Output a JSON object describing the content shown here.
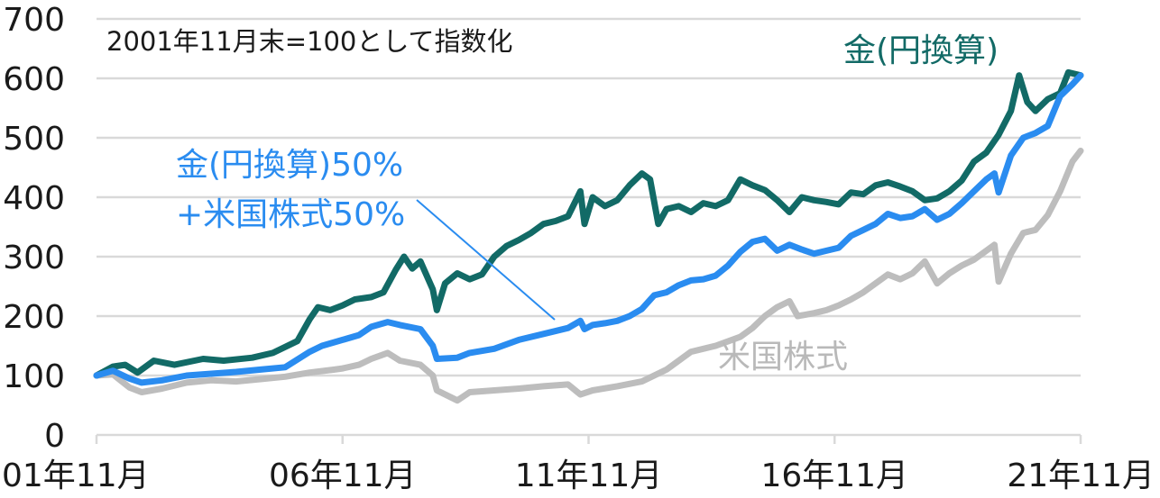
{
  "chart_data": {
    "type": "line",
    "note": "2001年11月末=100として指数化",
    "ylim": [
      0,
      700
    ],
    "yticks": [
      0,
      100,
      200,
      300,
      400,
      500,
      600,
      700
    ],
    "xticks": [
      "01年11月",
      "06年11月",
      "11年11月",
      "16年11月",
      "21年11月"
    ],
    "xlim": [
      "2001-11",
      "2021-11"
    ],
    "colors": {
      "gold": "#126a66",
      "mix": "#2a8cf0",
      "us": "#bdbdbd",
      "grid": "#d9d9d9"
    },
    "labels": {
      "gold": "金(円換算)",
      "mix_line1": "金(円換算)50%",
      "mix_line2": "+米国株式50%",
      "us": "米国株式"
    },
    "series": [
      {
        "key": "gold",
        "name": "金(円換算)",
        "points": [
          [
            "2001-11",
            100
          ],
          [
            "2002-03",
            115
          ],
          [
            "2002-06",
            118
          ],
          [
            "2002-09",
            105
          ],
          [
            "2003-01",
            125
          ],
          [
            "2003-06",
            118
          ],
          [
            "2004-01",
            128
          ],
          [
            "2004-06",
            125
          ],
          [
            "2005-01",
            130
          ],
          [
            "2005-06",
            138
          ],
          [
            "2005-12",
            158
          ],
          [
            "2006-03",
            195
          ],
          [
            "2006-05",
            215
          ],
          [
            "2006-08",
            210
          ],
          [
            "2006-11",
            218
          ],
          [
            "2007-02",
            228
          ],
          [
            "2007-06",
            232
          ],
          [
            "2007-09",
            240
          ],
          [
            "2007-12",
            278
          ],
          [
            "2008-02",
            300
          ],
          [
            "2008-04",
            280
          ],
          [
            "2008-06",
            292
          ],
          [
            "2008-09",
            245
          ],
          [
            "2008-10",
            210
          ],
          [
            "2008-12",
            255
          ],
          [
            "2009-03",
            272
          ],
          [
            "2009-06",
            262
          ],
          [
            "2009-09",
            270
          ],
          [
            "2009-12",
            300
          ],
          [
            "2010-03",
            318
          ],
          [
            "2010-06",
            328
          ],
          [
            "2010-09",
            340
          ],
          [
            "2010-12",
            355
          ],
          [
            "2011-03",
            360
          ],
          [
            "2011-06",
            368
          ],
          [
            "2011-09",
            410
          ],
          [
            "2011-10",
            355
          ],
          [
            "2011-12",
            400
          ],
          [
            "2012-03",
            385
          ],
          [
            "2012-06",
            395
          ],
          [
            "2012-09",
            420
          ],
          [
            "2012-12",
            440
          ],
          [
            "2013-02",
            430
          ],
          [
            "2013-04",
            355
          ],
          [
            "2013-06",
            380
          ],
          [
            "2013-09",
            385
          ],
          [
            "2013-12",
            375
          ],
          [
            "2014-03",
            390
          ],
          [
            "2014-06",
            385
          ],
          [
            "2014-09",
            395
          ],
          [
            "2014-12",
            430
          ],
          [
            "2015-03",
            420
          ],
          [
            "2015-06",
            412
          ],
          [
            "2015-09",
            395
          ],
          [
            "2015-12",
            375
          ],
          [
            "2016-03",
            400
          ],
          [
            "2016-06",
            395
          ],
          [
            "2016-09",
            392
          ],
          [
            "2016-12",
            388
          ],
          [
            "2017-03",
            408
          ],
          [
            "2017-06",
            405
          ],
          [
            "2017-09",
            420
          ],
          [
            "2017-12",
            425
          ],
          [
            "2018-03",
            418
          ],
          [
            "2018-06",
            410
          ],
          [
            "2018-09",
            395
          ],
          [
            "2018-12",
            398
          ],
          [
            "2019-03",
            410
          ],
          [
            "2019-06",
            428
          ],
          [
            "2019-09",
            460
          ],
          [
            "2019-12",
            475
          ],
          [
            "2020-03",
            505
          ],
          [
            "2020-06",
            545
          ],
          [
            "2020-08",
            605
          ],
          [
            "2020-10",
            560
          ],
          [
            "2020-12",
            545
          ],
          [
            "2021-03",
            565
          ],
          [
            "2021-06",
            575
          ],
          [
            "2021-08",
            610
          ],
          [
            "2021-11",
            605
          ]
        ]
      },
      {
        "key": "mix",
        "name": "金(円換算)50%+米国株式50%",
        "points": [
          [
            "2001-11",
            100
          ],
          [
            "2002-03",
            108
          ],
          [
            "2002-07",
            95
          ],
          [
            "2002-10",
            88
          ],
          [
            "2003-03",
            92
          ],
          [
            "2003-09",
            100
          ],
          [
            "2004-03",
            103
          ],
          [
            "2004-09",
            106
          ],
          [
            "2005-03",
            110
          ],
          [
            "2005-09",
            114
          ],
          [
            "2006-03",
            140
          ],
          [
            "2006-06",
            150
          ],
          [
            "2006-11",
            160
          ],
          [
            "2007-03",
            168
          ],
          [
            "2007-06",
            182
          ],
          [
            "2007-10",
            190
          ],
          [
            "2008-01",
            185
          ],
          [
            "2008-06",
            178
          ],
          [
            "2008-09",
            150
          ],
          [
            "2008-10",
            128
          ],
          [
            "2009-03",
            130
          ],
          [
            "2009-06",
            138
          ],
          [
            "2009-12",
            145
          ],
          [
            "2010-06",
            160
          ],
          [
            "2010-12",
            170
          ],
          [
            "2011-06",
            180
          ],
          [
            "2011-09",
            192
          ],
          [
            "2011-10",
            178
          ],
          [
            "2011-12",
            185
          ],
          [
            "2012-03",
            188
          ],
          [
            "2012-06",
            192
          ],
          [
            "2012-09",
            200
          ],
          [
            "2012-12",
            212
          ],
          [
            "2013-03",
            235
          ],
          [
            "2013-06",
            240
          ],
          [
            "2013-09",
            252
          ],
          [
            "2013-12",
            260
          ],
          [
            "2014-03",
            262
          ],
          [
            "2014-06",
            268
          ],
          [
            "2014-09",
            285
          ],
          [
            "2014-12",
            308
          ],
          [
            "2015-03",
            325
          ],
          [
            "2015-06",
            330
          ],
          [
            "2015-09",
            310
          ],
          [
            "2015-12",
            320
          ],
          [
            "2016-03",
            312
          ],
          [
            "2016-06",
            305
          ],
          [
            "2016-09",
            310
          ],
          [
            "2016-12",
            315
          ],
          [
            "2017-03",
            335
          ],
          [
            "2017-06",
            345
          ],
          [
            "2017-09",
            355
          ],
          [
            "2017-12",
            372
          ],
          [
            "2018-03",
            365
          ],
          [
            "2018-06",
            368
          ],
          [
            "2018-09",
            380
          ],
          [
            "2018-12",
            362
          ],
          [
            "2019-03",
            372
          ],
          [
            "2019-06",
            390
          ],
          [
            "2019-09",
            410
          ],
          [
            "2019-12",
            430
          ],
          [
            "2020-02",
            440
          ],
          [
            "2020-03",
            408
          ],
          [
            "2020-06",
            470
          ],
          [
            "2020-09",
            500
          ],
          [
            "2020-12",
            508
          ],
          [
            "2021-03",
            520
          ],
          [
            "2021-06",
            570
          ],
          [
            "2021-09",
            590
          ],
          [
            "2021-11",
            605
          ]
        ]
      },
      {
        "key": "us",
        "name": "米国株式",
        "points": [
          [
            "2001-11",
            100
          ],
          [
            "2002-03",
            102
          ],
          [
            "2002-07",
            80
          ],
          [
            "2002-10",
            72
          ],
          [
            "2003-03",
            78
          ],
          [
            "2003-09",
            88
          ],
          [
            "2004-03",
            92
          ],
          [
            "2004-09",
            90
          ],
          [
            "2005-03",
            94
          ],
          [
            "2005-09",
            98
          ],
          [
            "2006-03",
            105
          ],
          [
            "2006-09",
            110
          ],
          [
            "2006-11",
            112
          ],
          [
            "2007-03",
            118
          ],
          [
            "2007-06",
            128
          ],
          [
            "2007-10",
            138
          ],
          [
            "2008-01",
            125
          ],
          [
            "2008-06",
            118
          ],
          [
            "2008-09",
            100
          ],
          [
            "2008-10",
            75
          ],
          [
            "2009-03",
            58
          ],
          [
            "2009-06",
            72
          ],
          [
            "2009-12",
            75
          ],
          [
            "2010-06",
            78
          ],
          [
            "2010-12",
            82
          ],
          [
            "2011-06",
            85
          ],
          [
            "2011-09",
            68
          ],
          [
            "2011-12",
            75
          ],
          [
            "2012-06",
            82
          ],
          [
            "2012-12",
            90
          ],
          [
            "2013-06",
            110
          ],
          [
            "2013-12",
            140
          ],
          [
            "2014-06",
            150
          ],
          [
            "2014-12",
            165
          ],
          [
            "2015-03",
            180
          ],
          [
            "2015-06",
            200
          ],
          [
            "2015-09",
            215
          ],
          [
            "2015-12",
            225
          ],
          [
            "2016-02",
            200
          ],
          [
            "2016-06",
            205
          ],
          [
            "2016-09",
            210
          ],
          [
            "2016-12",
            218
          ],
          [
            "2017-03",
            228
          ],
          [
            "2017-06",
            240
          ],
          [
            "2017-09",
            255
          ],
          [
            "2017-12",
            270
          ],
          [
            "2018-03",
            262
          ],
          [
            "2018-06",
            272
          ],
          [
            "2018-09",
            292
          ],
          [
            "2018-12",
            255
          ],
          [
            "2019-03",
            272
          ],
          [
            "2019-06",
            285
          ],
          [
            "2019-09",
            295
          ],
          [
            "2019-12",
            310
          ],
          [
            "2020-02",
            320
          ],
          [
            "2020-03",
            258
          ],
          [
            "2020-06",
            305
          ],
          [
            "2020-09",
            340
          ],
          [
            "2020-12",
            345
          ],
          [
            "2021-03",
            370
          ],
          [
            "2021-06",
            410
          ],
          [
            "2021-09",
            460
          ],
          [
            "2021-11",
            478
          ]
        ]
      }
    ]
  }
}
